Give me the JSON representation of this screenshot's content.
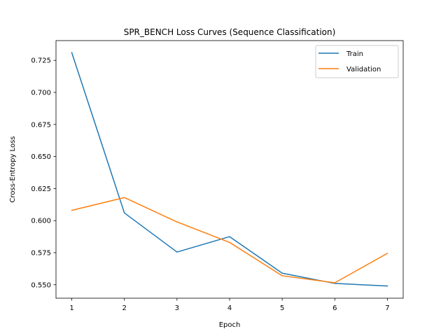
{
  "chart_data": {
    "type": "line",
    "title": "SPR_BENCH Loss Curves (Sequence Classification)",
    "xlabel": "Epoch",
    "ylabel": "Cross-Entropy Loss",
    "x": [
      1,
      2,
      3,
      4,
      5,
      6,
      7
    ],
    "xticks": [
      "1",
      "2",
      "3",
      "4",
      "5",
      "6",
      "7"
    ],
    "yticks": [
      "0.550",
      "0.575",
      "0.600",
      "0.625",
      "0.650",
      "0.675",
      "0.700",
      "0.725"
    ],
    "xlim": [
      0.7,
      7.3
    ],
    "ylim": [
      0.5395,
      0.7404
    ],
    "grid": false,
    "legend_position": "top-right",
    "series": [
      {
        "name": "Train",
        "color": "#1f77b4",
        "values": [
          0.731,
          0.606,
          0.5755,
          0.5875,
          0.559,
          0.551,
          0.549
        ]
      },
      {
        "name": "Validation",
        "color": "#ff7f0e",
        "values": [
          0.608,
          0.618,
          0.599,
          0.583,
          0.557,
          0.5515,
          0.5745
        ]
      }
    ]
  }
}
